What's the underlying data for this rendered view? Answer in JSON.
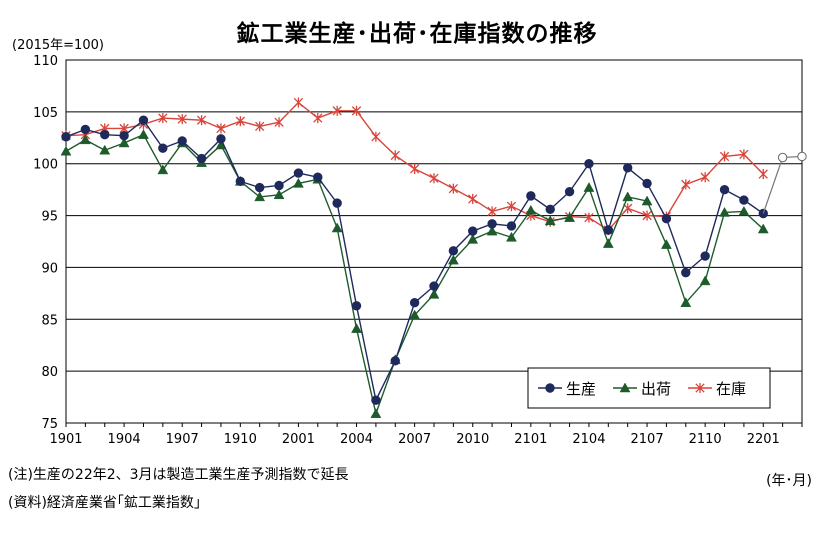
{
  "title": "鉱工業生産･出荷･在庫指数の推移",
  "unit_label": "(2015年=100)",
  "notes": [
    "(注)生産の22年2、3月は製造工業生産予測指数で延長",
    "(資料)経済産業省｢鉱工業指数｣"
  ],
  "x_unit_label": "(年･月)",
  "chart_data": {
    "type": "line",
    "title": "鉱工業生産･出荷･在庫指数の推移",
    "ylabel": "(2015年=100)",
    "xlabel": "(年･月)",
    "ylim": [
      75,
      110
    ],
    "yticks": [
      75,
      80,
      85,
      90,
      95,
      100,
      105,
      110
    ],
    "x_tick_labels": [
      "1901",
      "1904",
      "1907",
      "1910",
      "2001",
      "2004",
      "2007",
      "2010",
      "2101",
      "2104",
      "2107",
      "2110",
      "2201"
    ],
    "grid": true,
    "legend_position": "bottom-right",
    "series": [
      {
        "name": "生産",
        "color": "#1f2a5c",
        "marker": "circle",
        "values": [
          102.6,
          103.3,
          102.8,
          102.7,
          104.2,
          101.5,
          102.2,
          100.5,
          102.4,
          98.3,
          97.7,
          97.9,
          99.1,
          98.7,
          96.2,
          86.3,
          77.2,
          81.0,
          86.6,
          88.2,
          91.6,
          93.5,
          94.2,
          94.0,
          96.9,
          95.6,
          97.3,
          100.0,
          93.6,
          99.6,
          98.1,
          94.7,
          89.5,
          91.1,
          97.5,
          96.5,
          95.2
        ],
        "forecast_values": [
          100.6,
          100.7
        ]
      },
      {
        "name": "出荷",
        "color": "#1e5b2c",
        "marker": "triangle",
        "values": [
          101.2,
          102.3,
          101.3,
          102.0,
          102.8,
          99.4,
          102.0,
          100.1,
          101.8,
          98.3,
          96.8,
          97.0,
          98.1,
          98.5,
          93.8,
          84.1,
          75.9,
          81.1,
          85.4,
          87.4,
          90.7,
          92.7,
          93.5,
          92.9,
          95.5,
          94.5,
          94.8,
          97.7,
          92.3,
          96.8,
          96.4,
          92.2,
          86.6,
          88.7,
          95.3,
          95.4,
          93.7
        ]
      },
      {
        "name": "在庫",
        "color": "#d9453a",
        "marker": "star",
        "values": [
          102.7,
          102.8,
          103.4,
          103.4,
          103.8,
          104.4,
          104.3,
          104.2,
          103.4,
          104.1,
          103.6,
          104.0,
          105.9,
          104.4,
          105.1,
          105.1,
          102.6,
          100.8,
          99.5,
          98.6,
          97.6,
          96.6,
          95.4,
          95.9,
          95.0,
          94.4,
          94.9,
          94.8,
          93.6,
          95.7,
          95.0,
          94.9,
          98.0,
          98.7,
          100.7,
          100.9,
          99.0
        ]
      }
    ]
  }
}
